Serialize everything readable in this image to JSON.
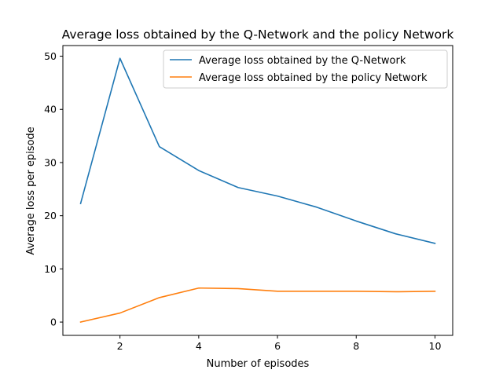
{
  "chart_data": {
    "type": "line",
    "title": "Average loss obtained by the Q-Network and the policy Network",
    "xlabel": "Number of episodes",
    "ylabel": "Average loss per episode",
    "x": [
      1,
      2,
      3,
      4,
      5,
      6,
      7,
      8,
      9,
      10
    ],
    "xlim": [
      0.55,
      10.45
    ],
    "ylim": [
      -2.5,
      52.0
    ],
    "xticks": [
      2,
      4,
      6,
      8,
      10
    ],
    "yticks": [
      0,
      10,
      20,
      30,
      40,
      50
    ],
    "grid": false,
    "legend_position": "upper right",
    "series": [
      {
        "name": "Average loss obtained by the Q-Network",
        "color": "#1f77b4",
        "values": [
          22.3,
          49.6,
          33.0,
          28.5,
          25.3,
          23.7,
          21.6,
          19.0,
          16.6,
          14.8
        ]
      },
      {
        "name": "Average loss obtained by the policy Network",
        "color": "#ff7f0e",
        "values": [
          0.0,
          1.7,
          4.6,
          6.4,
          6.3,
          5.8,
          5.8,
          5.8,
          5.7,
          5.8
        ]
      }
    ]
  }
}
